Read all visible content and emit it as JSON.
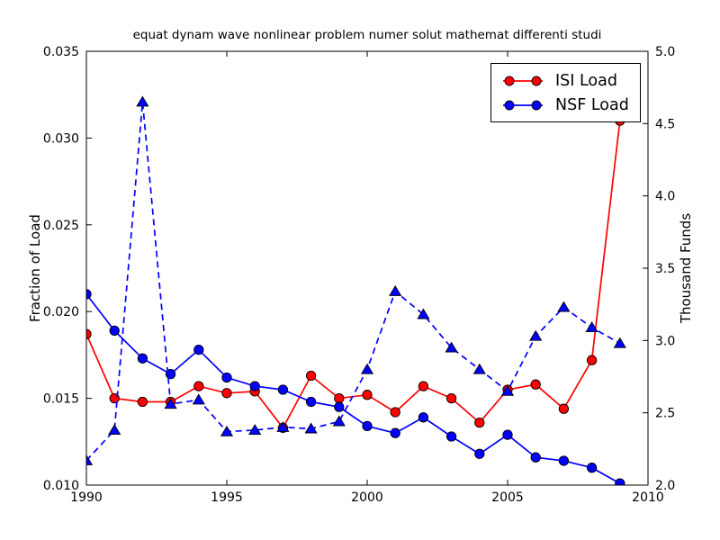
{
  "chart_data": {
    "type": "line",
    "title": "equat dynam wave nonlinear problem numer solut mathemat differenti studi",
    "xlabel": "",
    "ylabel_left": "Fraction of Load",
    "ylabel_right": "Thousand Funds",
    "xlim": [
      1990,
      2010
    ],
    "ylim_left": [
      0.01,
      0.035
    ],
    "ylim_right": [
      2.0,
      5.0
    ],
    "xticks": [
      "1990",
      "1995",
      "2000",
      "2005",
      "2010"
    ],
    "yticks_left": [
      "0.010",
      "0.015",
      "0.020",
      "0.025",
      "0.030",
      "0.035"
    ],
    "yticks_right": [
      "2.0",
      "2.5",
      "3.0",
      "3.5",
      "4.0",
      "4.5",
      "5.0"
    ],
    "grid": false,
    "x": [
      1990,
      1991,
      1992,
      1993,
      1994,
      1995,
      1996,
      1997,
      1998,
      1999,
      2000,
      2001,
      2002,
      2003,
      2004,
      2005,
      2006,
      2007,
      2008,
      2009
    ],
    "series": [
      {
        "name": "ISI Load",
        "axis": "left",
        "color": "#ff0000",
        "line": "solid",
        "marker": "circle",
        "values": [
          0.0187,
          0.015,
          0.0148,
          0.0148,
          0.0157,
          0.0153,
          0.0154,
          0.0133,
          0.0163,
          0.015,
          0.0152,
          0.0142,
          0.0157,
          0.015,
          0.0136,
          0.0155,
          0.0158,
          0.0144,
          0.0172,
          0.031
        ]
      },
      {
        "name": "NSF Load",
        "axis": "left",
        "color": "#0000ff",
        "line": "solid",
        "marker": "circle",
        "values": [
          0.021,
          0.0189,
          0.0173,
          0.0164,
          0.0178,
          0.0162,
          0.0157,
          0.0155,
          0.0148,
          0.0145,
          0.0134,
          0.013,
          0.0139,
          0.0128,
          0.0118,
          0.0129,
          0.0116,
          0.0114,
          0.011,
          0.0101
        ]
      },
      {
        "name": "Thousand Funds",
        "axis": "right",
        "color": "#0000ff",
        "line": "dashed",
        "marker": "triangle",
        "values": [
          2.17,
          2.38,
          4.65,
          2.56,
          2.59,
          2.37,
          2.38,
          2.4,
          2.39,
          2.44,
          2.8,
          3.34,
          3.18,
          2.95,
          2.8,
          2.65,
          3.03,
          3.23,
          3.09,
          2.98
        ]
      }
    ],
    "legend": {
      "position": "upper right",
      "entries": [
        "ISI Load",
        "NSF Load"
      ]
    },
    "marker_edge_color": "#000000"
  }
}
